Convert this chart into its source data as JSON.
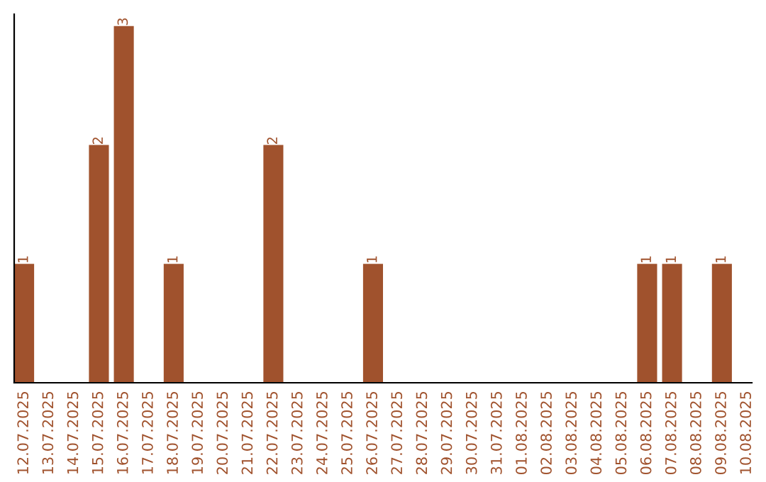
{
  "chart_data": {
    "type": "bar",
    "categories": [
      "12.07.2025",
      "13.07.2025",
      "14.07.2025",
      "15.07.2025",
      "16.07.2025",
      "17.07.2025",
      "18.07.2025",
      "19.07.2025",
      "20.07.2025",
      "21.07.2025",
      "22.07.2025",
      "23.07.2025",
      "24.07.2025",
      "25.07.2025",
      "26.07.2025",
      "27.07.2025",
      "28.07.2025",
      "29.07.2025",
      "30.07.2025",
      "31.07.2025",
      "01.08.2025",
      "02.08.2025",
      "03.08.2025",
      "04.08.2025",
      "05.08.2025",
      "06.08.2025",
      "07.08.2025",
      "08.08.2025",
      "09.08.2025",
      "10.08.2025"
    ],
    "values": [
      1,
      0,
      0,
      2,
      3,
      0,
      1,
      0,
      0,
      0,
      2,
      0,
      0,
      0,
      1,
      0,
      0,
      0,
      0,
      0,
      0,
      0,
      0,
      0,
      0,
      1,
      1,
      0,
      1,
      0
    ],
    "value_labels": [
      "1",
      null,
      null,
      "2",
      "3",
      null,
      "1",
      null,
      null,
      null,
      "2",
      null,
      null,
      null,
      "1",
      null,
      null,
      null,
      null,
      null,
      null,
      null,
      null,
      null,
      null,
      "1",
      "1",
      null,
      "1",
      null
    ],
    "color": "#a0522d",
    "ylim": [
      0,
      3.1
    ],
    "tick_labels": "x",
    "grid": false,
    "legend": false
  }
}
